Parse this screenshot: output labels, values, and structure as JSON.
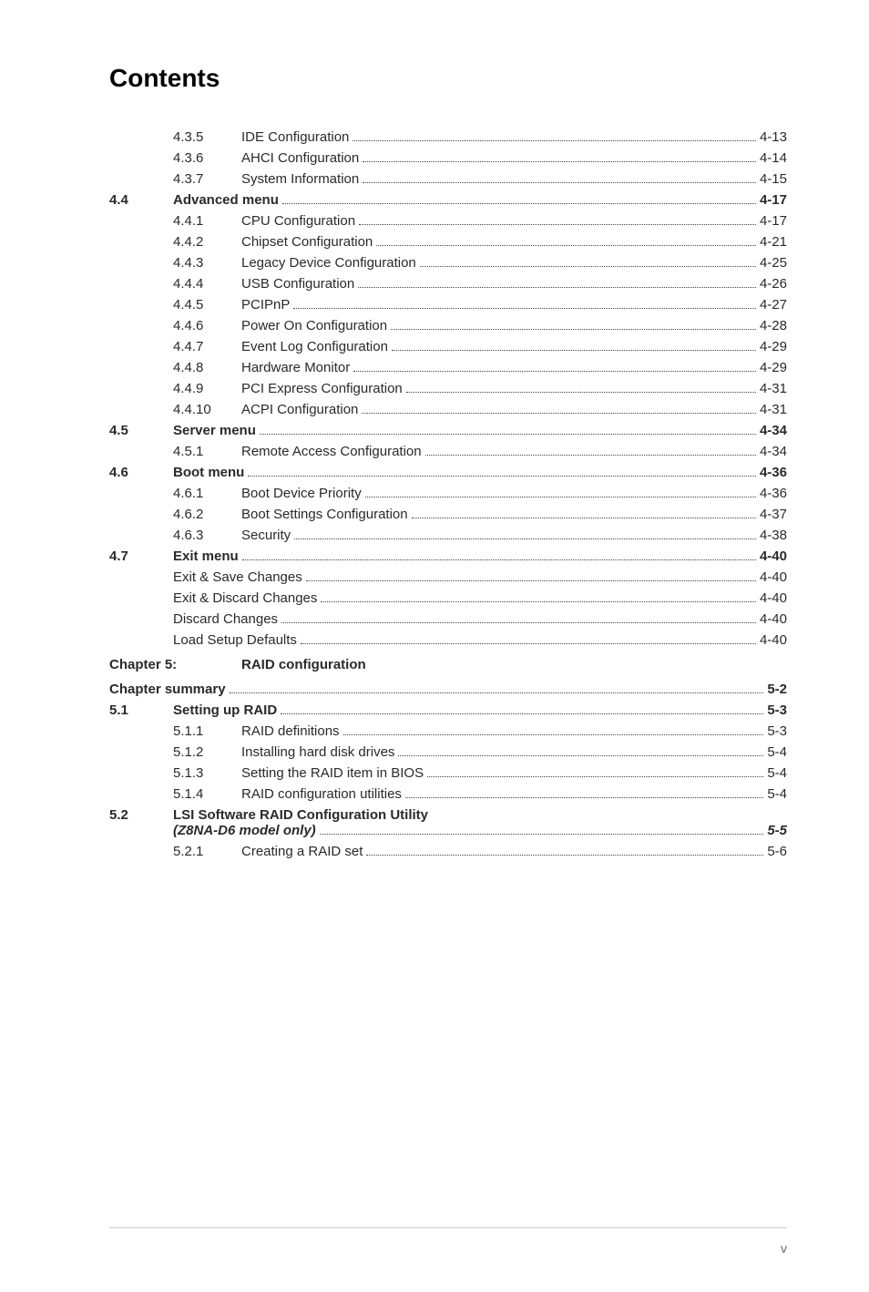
{
  "title": "Contents",
  "rows": [
    {
      "type": "sub",
      "num": "4.3.5",
      "title": "IDE Configuration",
      "page": "4-13"
    },
    {
      "type": "sub",
      "num": "4.3.6",
      "title": "AHCI Configuration",
      "page": "4-14"
    },
    {
      "type": "sub",
      "num": "4.3.7",
      "title": "System Information",
      "page": "4-15"
    },
    {
      "type": "section",
      "num": "4.4",
      "title": "Advanced menu",
      "page": "4-17"
    },
    {
      "type": "sub",
      "num": "4.4.1",
      "title": "CPU Configuration",
      "page": "4-17"
    },
    {
      "type": "sub",
      "num": "4.4.2",
      "title": "Chipset Configuration",
      "page": "4-21"
    },
    {
      "type": "sub",
      "num": "4.4.3",
      "title": "Legacy Device Configuration",
      "page": "4-25"
    },
    {
      "type": "sub",
      "num": "4.4.4",
      "title": "USB Configuration",
      "page": "4-26"
    },
    {
      "type": "sub",
      "num": "4.4.5",
      "title": "PCIPnP",
      "page": "4-27"
    },
    {
      "type": "sub",
      "num": "4.4.6",
      "title": "Power On Configuration",
      "page": "4-28"
    },
    {
      "type": "sub",
      "num": "4.4.7",
      "title": "Event Log Configuration",
      "page": "4-29"
    },
    {
      "type": "sub",
      "num": "4.4.8",
      "title": "Hardware Monitor",
      "page": "4-29"
    },
    {
      "type": "sub",
      "num": "4.4.9",
      "title": "PCI Express Configuration",
      "page": "4-31"
    },
    {
      "type": "sub",
      "num": "4.4.10",
      "title": "ACPI Configuration",
      "page": "4-31"
    },
    {
      "type": "section",
      "num": "4.5",
      "title": "Server menu",
      "page": "4-34"
    },
    {
      "type": "sub",
      "num": "4.5.1",
      "title": "Remote Access Configuration",
      "page": "4-34"
    },
    {
      "type": "section",
      "num": "4.6",
      "title": "Boot menu",
      "page": "4-36"
    },
    {
      "type": "sub",
      "num": "4.6.1",
      "title": "Boot Device Priority",
      "page": "4-36"
    },
    {
      "type": "sub",
      "num": "4.6.2",
      "title": "Boot Settings Configuration",
      "page": "4-37"
    },
    {
      "type": "sub",
      "num": "4.6.3",
      "title": "Security",
      "page": "4-38"
    },
    {
      "type": "section",
      "num": "4.7",
      "title": "Exit menu",
      "page": "4-40"
    },
    {
      "type": "plain",
      "title": "Exit & Save Changes",
      "page": "4-40"
    },
    {
      "type": "plain",
      "title": "Exit & Discard Changes",
      "page": "4-40"
    },
    {
      "type": "plain",
      "title": "Discard Changes",
      "page": "4-40"
    },
    {
      "type": "plain",
      "title": "Load Setup Defaults",
      "page": "4-40"
    }
  ],
  "chapter": {
    "label": "Chapter 5:",
    "title": "RAID configuration"
  },
  "rows2": [
    {
      "type": "summary",
      "title": "Chapter summary",
      "page": "5-2"
    },
    {
      "type": "section",
      "num": "5.1",
      "title": "Setting up RAID",
      "page": "5-3"
    },
    {
      "type": "sub",
      "num": "5.1.1",
      "title": "RAID definitions",
      "page": "5-3"
    },
    {
      "type": "sub",
      "num": "5.1.2",
      "title": "Installing hard disk drives",
      "page": "5-4"
    },
    {
      "type": "sub",
      "num": "5.1.3",
      "title": "Setting the RAID item in BIOS",
      "page": "5-4"
    },
    {
      "type": "sub",
      "num": "5.1.4",
      "title": "RAID configuration utilities",
      "page": "5-4"
    }
  ],
  "twoline": {
    "num": "5.2",
    "title1": "LSI Software RAID Configuration Utility",
    "title2": "(Z8NA-D6 model only)",
    "page": "5-5"
  },
  "rows3": [
    {
      "type": "sub",
      "num": "5.2.1",
      "title": "Creating a RAID set",
      "page": "5-6"
    }
  ],
  "pagenum": "v"
}
